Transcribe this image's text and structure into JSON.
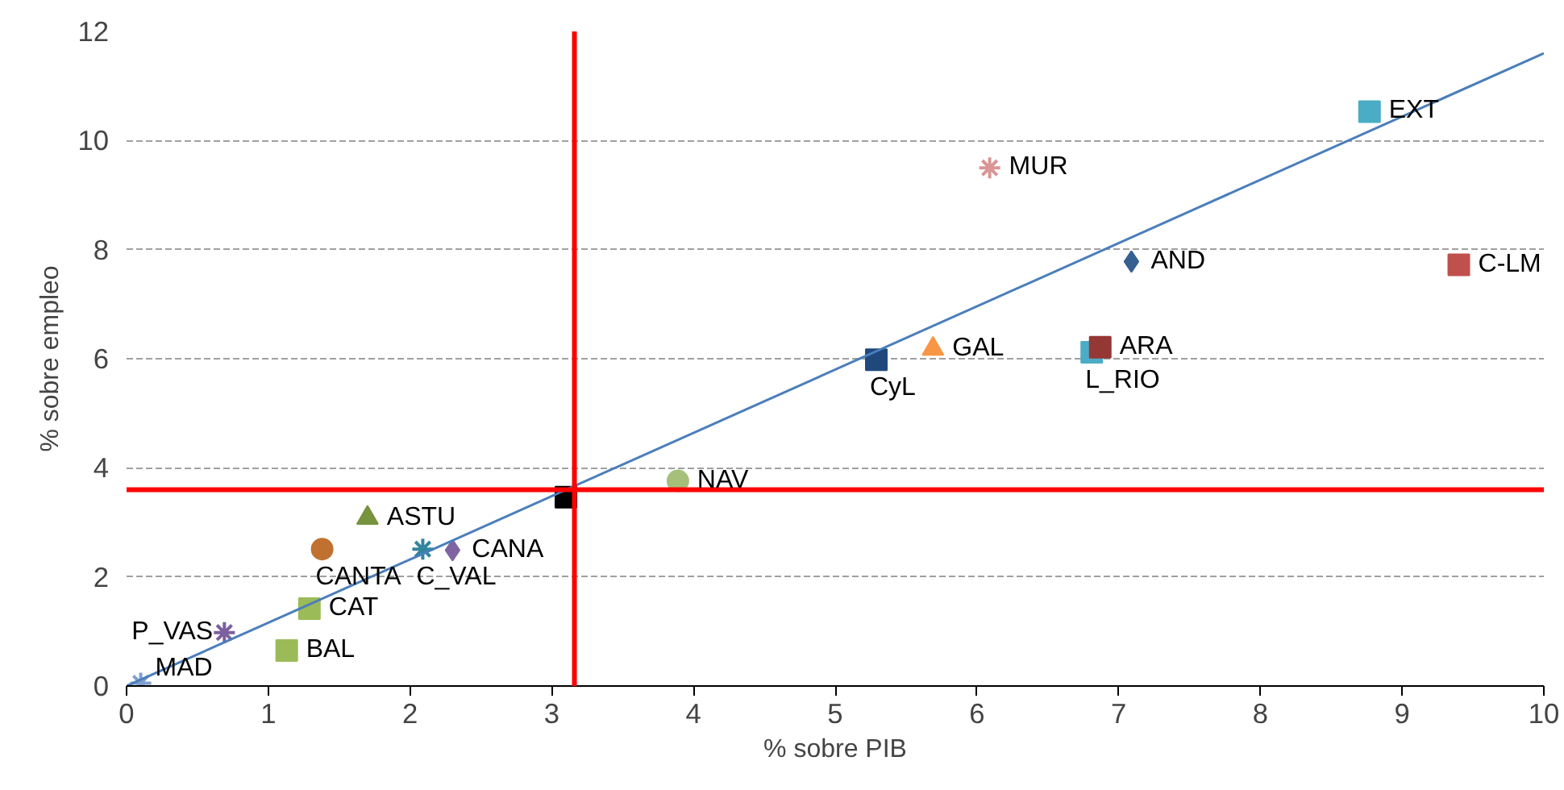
{
  "chart_data": {
    "type": "scatter",
    "xlabel": "% sobre PIB",
    "ylabel": "% sobre empleo",
    "xlim": [
      0,
      10
    ],
    "ylim": [
      0,
      12
    ],
    "xticks": [
      0,
      1,
      2,
      3,
      4,
      5,
      6,
      7,
      8,
      9,
      10
    ],
    "yticks": [
      0,
      2,
      4,
      6,
      8,
      10,
      12
    ],
    "grid": "y",
    "series": [
      {
        "name": "MAD",
        "color": "#7f9fcf",
        "x": [
          0.1
        ],
        "values": [
          0.05
        ],
        "marker": "cross"
      },
      {
        "name": "P_VAS",
        "color": "#7b5fa0",
        "x": [
          0.69
        ],
        "values": [
          0.98
        ],
        "marker": "cross"
      },
      {
        "name": "BAL",
        "color": "#9bbb59",
        "x": [
          1.13
        ],
        "values": [
          0.65
        ],
        "marker": "square"
      },
      {
        "name": "CAT",
        "color": "#9bbb59",
        "x": [
          1.29
        ],
        "values": [
          1.42
        ],
        "marker": "square"
      },
      {
        "name": "CANTA",
        "color": "#c0712f",
        "x": [
          1.38
        ],
        "values": [
          2.51
        ],
        "marker": "circle"
      },
      {
        "name": "ASTU",
        "color": "#77933c",
        "x": [
          1.7
        ],
        "values": [
          3.08
        ],
        "marker": "triangle"
      },
      {
        "name": "C_VAL",
        "color": "#31859c",
        "x": [
          2.09
        ],
        "values": [
          2.51
        ],
        "marker": "cross"
      },
      {
        "name": "CANA",
        "color": "#8064a2",
        "x": [
          2.3
        ],
        "values": [
          2.49
        ],
        "marker": "diamond"
      },
      {
        "color": "#000000",
        "x": [
          3.1
        ],
        "values": [
          3.46
        ],
        "marker": "square"
      },
      {
        "name": "NAV",
        "color": "#a6c07a",
        "x": [
          3.89
        ],
        "values": [
          3.76
        ],
        "marker": "circle"
      },
      {
        "name": "CyL",
        "color": "#1f497d",
        "x": [
          5.29
        ],
        "values": [
          5.98
        ],
        "marker": "square"
      },
      {
        "name": "GAL",
        "color": "#f79646",
        "x": [
          5.69
        ],
        "values": [
          6.18
        ],
        "marker": "triangle"
      },
      {
        "name": "L_RIO",
        "color": "#4bacc6",
        "x": [
          6.81
        ],
        "values": [
          6.12
        ],
        "marker": "square"
      },
      {
        "name": "ARA",
        "color": "#953735",
        "x": [
          6.87
        ],
        "values": [
          6.21
        ],
        "marker": "square"
      },
      {
        "name": "AND",
        "color": "#376092",
        "x": [
          7.09
        ],
        "values": [
          7.78
        ],
        "marker": "diamond"
      },
      {
        "name": "MUR",
        "color": "#d99694",
        "x": [
          6.09
        ],
        "values": [
          9.5
        ],
        "marker": "cross"
      },
      {
        "name": "EXT",
        "color": "#4bacc6",
        "x": [
          8.77
        ],
        "values": [
          10.53
        ],
        "marker": "square"
      },
      {
        "name": "C-LM",
        "color": "#c0504d",
        "x": [
          9.4
        ],
        "values": [
          7.72
        ],
        "marker": "square"
      },
      {
        "type": "line",
        "color": "#4a7ebb",
        "x": [
          0,
          10
        ],
        "values": [
          0,
          11.6
        ]
      }
    ],
    "ref_lines": [
      {
        "axis": "x",
        "value": 3.16,
        "color": "#ff0000"
      },
      {
        "axis": "y",
        "value": 3.6,
        "color": "#ff0000"
      }
    ]
  }
}
